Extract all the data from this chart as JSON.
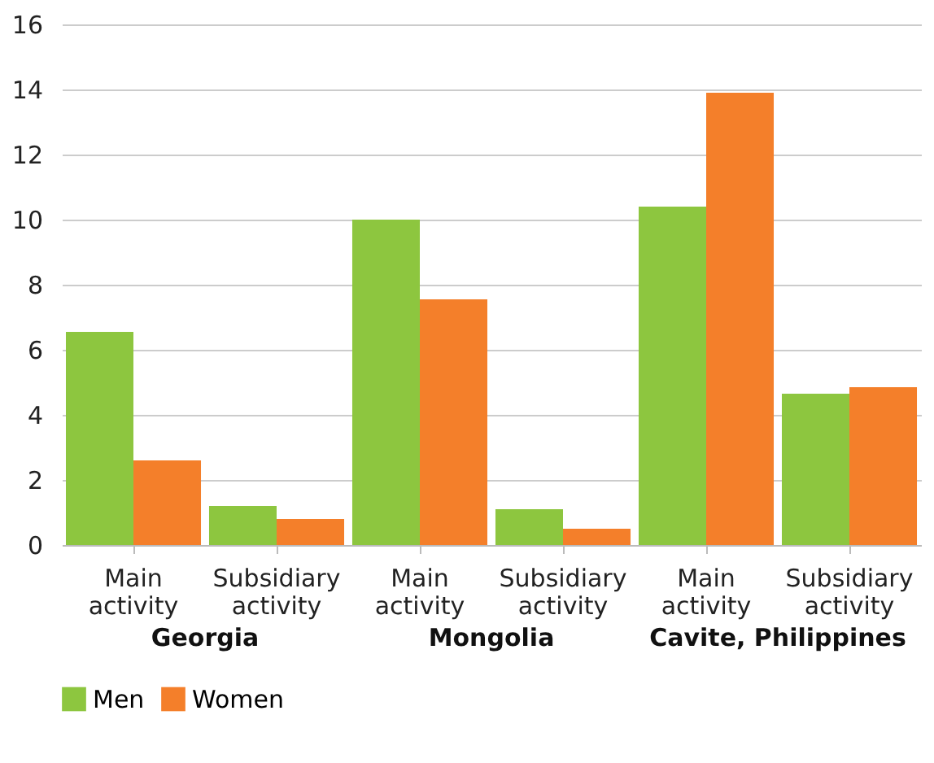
{
  "chart_data": {
    "type": "bar",
    "categories": [
      "Main activity",
      "Subsidiary activity",
      "Main activity",
      "Subsidiary activity",
      "Main activity",
      "Subsidiary activity"
    ],
    "series": [
      {
        "name": "Men",
        "color": "#8dc63f",
        "values": [
          6.55,
          1.2,
          10.0,
          1.1,
          10.4,
          4.65
        ]
      },
      {
        "name": "Women",
        "color": "#f47f2a",
        "values": [
          2.6,
          0.8,
          7.55,
          0.5,
          13.9,
          4.85
        ]
      }
    ],
    "ylim": [
      0,
      16
    ],
    "yticks": [
      0,
      2,
      4,
      6,
      8,
      10,
      12,
      14,
      16
    ],
    "grid": "y",
    "legend": "bottom",
    "annotations": [
      "Georgia",
      "Mongolia",
      "Cavite, Philippines"
    ]
  }
}
